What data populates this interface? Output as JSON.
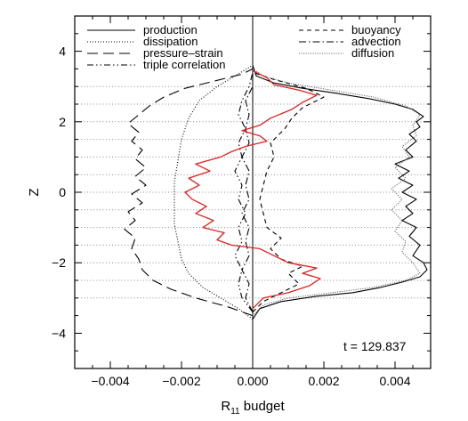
{
  "chart_data": {
    "type": "line",
    "title": "",
    "xlabel": "R",
    "xlabel_sub": "11",
    "xlabel_suffix": " budget",
    "ylabel": "Z",
    "xlim": [
      -0.005,
      0.005
    ],
    "ylim": [
      -5,
      5
    ],
    "xticks": [
      -0.004,
      -0.002,
      0.0,
      0.002,
      0.004
    ],
    "xtick_labels": [
      "−0.004",
      "−0.002",
      "0.000",
      "0.002",
      "0.004"
    ],
    "yticks": [
      -4,
      -2,
      0,
      2,
      4
    ],
    "ytick_labels": [
      "−4",
      "−2",
      "0",
      "2",
      "4"
    ],
    "dotted_gridlines_z": [
      -3,
      -2.5,
      -2,
      -1.5,
      -1,
      -0.5,
      0,
      0.5,
      1,
      1.5,
      2,
      2.5,
      3
    ],
    "grid": "horizontal dotted lines at selected Z levels",
    "annotation": "t = 129.837",
    "legend_placement": "top, two columns",
    "series": [
      {
        "name": "production",
        "style": "solid",
        "color": "#000000",
        "points": [
          [
            0,
            -3.6
          ],
          [
            0.0002,
            -3.3
          ],
          [
            0.0008,
            -3.1
          ],
          [
            0.0018,
            -2.95
          ],
          [
            0.0028,
            -2.85
          ],
          [
            0.0036,
            -2.7
          ],
          [
            0.0042,
            -2.55
          ],
          [
            0.0047,
            -2.4
          ],
          [
            0.0049,
            -2.2
          ],
          [
            0.0048,
            -2.0
          ],
          [
            0.0045,
            -1.8
          ],
          [
            0.0047,
            -1.5
          ],
          [
            0.0044,
            -1.25
          ],
          [
            0.0046,
            -1.0
          ],
          [
            0.0042,
            -0.8
          ],
          [
            0.0045,
            -0.6
          ],
          [
            0.0043,
            -0.4
          ],
          [
            0.0046,
            -0.2
          ],
          [
            0.0042,
            0.0
          ],
          [
            0.0045,
            0.2
          ],
          [
            0.0041,
            0.4
          ],
          [
            0.0044,
            0.6
          ],
          [
            0.004,
            0.8
          ],
          [
            0.0045,
            1.0
          ],
          [
            0.0043,
            1.2
          ],
          [
            0.0046,
            1.45
          ],
          [
            0.0044,
            1.65
          ],
          [
            0.0047,
            1.85
          ],
          [
            0.0046,
            2.0
          ],
          [
            0.0048,
            2.15
          ],
          [
            0.0045,
            2.35
          ],
          [
            0.004,
            2.5
          ],
          [
            0.0033,
            2.65
          ],
          [
            0.0024,
            2.8
          ],
          [
            0.0014,
            2.95
          ],
          [
            0.0006,
            3.1
          ],
          [
            0.0001,
            3.3
          ],
          [
            0,
            3.6
          ]
        ]
      },
      {
        "name": "dissipation",
        "style": "dotted",
        "color": "#000000",
        "points": [
          [
            0,
            -3.6
          ],
          [
            -0.0004,
            -3.3
          ],
          [
            -0.0009,
            -3.0
          ],
          [
            -0.0014,
            -2.7
          ],
          [
            -0.0018,
            -2.3
          ],
          [
            -0.002,
            -1.9
          ],
          [
            -0.0021,
            -1.4
          ],
          [
            -0.0022,
            -0.9
          ],
          [
            -0.0022,
            -0.3
          ],
          [
            -0.0022,
            0.3
          ],
          [
            -0.0021,
            0.9
          ],
          [
            -0.002,
            1.5
          ],
          [
            -0.0018,
            2.1
          ],
          [
            -0.0015,
            2.6
          ],
          [
            -0.001,
            3.0
          ],
          [
            -0.0005,
            3.3
          ],
          [
            0,
            3.6
          ]
        ]
      },
      {
        "name": "pressure–strain",
        "style": "long-dash",
        "color": "#000000",
        "points": [
          [
            0,
            -3.5
          ],
          [
            -0.0007,
            -3.25
          ],
          [
            -0.0016,
            -3.0
          ],
          [
            -0.0023,
            -2.75
          ],
          [
            -0.0028,
            -2.5
          ],
          [
            -0.0031,
            -2.2
          ],
          [
            -0.0032,
            -1.9
          ],
          [
            -0.0034,
            -1.6
          ],
          [
            -0.0033,
            -1.3
          ],
          [
            -0.0036,
            -1.05
          ],
          [
            -0.0033,
            -0.8
          ],
          [
            -0.0035,
            -0.55
          ],
          [
            -0.0031,
            -0.3
          ],
          [
            -0.0034,
            -0.05
          ],
          [
            -0.003,
            0.2
          ],
          [
            -0.0033,
            0.45
          ],
          [
            -0.003,
            0.7
          ],
          [
            -0.0033,
            0.95
          ],
          [
            -0.0031,
            1.2
          ],
          [
            -0.0034,
            1.45
          ],
          [
            -0.0032,
            1.7
          ],
          [
            -0.0035,
            1.95
          ],
          [
            -0.0032,
            2.2
          ],
          [
            -0.0029,
            2.45
          ],
          [
            -0.0025,
            2.7
          ],
          [
            -0.0019,
            2.95
          ],
          [
            -0.0011,
            3.15
          ],
          [
            -0.0003,
            3.35
          ],
          [
            0,
            3.5
          ]
        ]
      },
      {
        "name": "triple correlation",
        "style": "dash-dot-dot",
        "color": "#000000",
        "points": [
          [
            0,
            -3.4
          ],
          [
            -0.0003,
            -3.0
          ],
          [
            -0.0004,
            -2.6
          ],
          [
            -0.0003,
            -2.2
          ],
          [
            -0.0005,
            -1.8
          ],
          [
            -0.0003,
            -1.4
          ],
          [
            -0.0004,
            -1.0
          ],
          [
            -0.0002,
            -0.6
          ],
          [
            -0.0004,
            -0.2
          ],
          [
            -0.0003,
            0.2
          ],
          [
            -0.0005,
            0.6
          ],
          [
            -0.0003,
            1.0
          ],
          [
            -0.0004,
            1.4
          ],
          [
            -0.0002,
            1.8
          ],
          [
            -0.0004,
            2.2
          ],
          [
            -0.0003,
            2.6
          ],
          [
            -0.0001,
            3.0
          ],
          [
            0,
            3.4
          ]
        ]
      },
      {
        "name": "buoyancy",
        "style": "short-dash",
        "color": "#000000",
        "points": [
          [
            0,
            -3.4
          ],
          [
            0.0003,
            -3.1
          ],
          [
            0.0008,
            -2.85
          ],
          [
            0.0013,
            -2.6
          ],
          [
            0.001,
            -2.3
          ],
          [
            0.0014,
            -2.1
          ],
          [
            0.0008,
            -1.9
          ],
          [
            0.0005,
            -1.6
          ],
          [
            0.0008,
            -1.3
          ],
          [
            0.0004,
            -1.0
          ],
          [
            0.0003,
            -0.6
          ],
          [
            0.0002,
            -0.2
          ],
          [
            0.0003,
            0.2
          ],
          [
            0.0004,
            0.6
          ],
          [
            0.0006,
            1.0
          ],
          [
            0.0005,
            1.4
          ],
          [
            0.0009,
            1.8
          ],
          [
            0.0011,
            2.1
          ],
          [
            0.0014,
            2.4
          ],
          [
            0.002,
            2.7
          ],
          [
            0.0015,
            2.95
          ],
          [
            0.0006,
            3.2
          ],
          [
            0,
            3.4
          ]
        ]
      },
      {
        "name": "advection",
        "style": "dash-dot",
        "color": "#000000",
        "points": [
          [
            0,
            -3.4
          ],
          [
            -0.0002,
            -3.0
          ],
          [
            -0.0001,
            -2.6
          ],
          [
            -0.0003,
            -2.2
          ],
          [
            -0.0001,
            -1.8
          ],
          [
            -0.0002,
            -1.4
          ],
          [
            -0.0001,
            -1.0
          ],
          [
            -0.0003,
            -0.6
          ],
          [
            -0.0001,
            -0.2
          ],
          [
            -0.0002,
            0.2
          ],
          [
            -0.0001,
            0.6
          ],
          [
            -0.0003,
            1.0
          ],
          [
            -0.0001,
            1.4
          ],
          [
            -0.0002,
            1.8
          ],
          [
            -0.0001,
            2.2
          ],
          [
            -0.0002,
            2.6
          ],
          [
            0,
            3.0
          ],
          [
            0,
            3.4
          ]
        ]
      },
      {
        "name": "diffusion",
        "style": "thin-dotted",
        "color": "#555555",
        "points": [
          [
            0,
            -3.5
          ],
          [
            0.0003,
            -3.2
          ],
          [
            0.001,
            -3.0
          ],
          [
            0.0022,
            -2.85
          ],
          [
            0.0034,
            -2.7
          ],
          [
            0.0043,
            -2.5
          ],
          [
            0.0047,
            -2.3
          ],
          [
            0.0045,
            -2.0
          ],
          [
            0.0042,
            -1.7
          ],
          [
            0.0043,
            -1.4
          ],
          [
            0.004,
            -1.1
          ],
          [
            0.0042,
            -0.8
          ],
          [
            0.0039,
            -0.5
          ],
          [
            0.0042,
            -0.2
          ],
          [
            0.0039,
            0.1
          ],
          [
            0.0043,
            0.4
          ],
          [
            0.004,
            0.7
          ],
          [
            0.0044,
            1.0
          ],
          [
            0.0042,
            1.3
          ],
          [
            0.0046,
            1.6
          ],
          [
            0.0045,
            1.9
          ],
          [
            0.0047,
            2.2
          ],
          [
            0.0043,
            2.45
          ],
          [
            0.0034,
            2.7
          ],
          [
            0.0022,
            2.9
          ],
          [
            0.001,
            3.1
          ],
          [
            0.0003,
            3.3
          ],
          [
            0,
            3.5
          ]
        ]
      },
      {
        "style": "solid",
        "color": "#e02020",
        "points": [
          [
            0,
            -3.3
          ],
          [
            0.0003,
            -3.0
          ],
          [
            0.001,
            -2.85
          ],
          [
            0.0016,
            -2.65
          ],
          [
            0.0019,
            -2.45
          ],
          [
            0.0014,
            -2.3
          ],
          [
            0.0018,
            -2.15
          ],
          [
            0.001,
            -2.0
          ],
          [
            0.0006,
            -1.8
          ],
          [
            0.0002,
            -1.6
          ],
          [
            -0.0006,
            -1.5
          ],
          [
            -0.001,
            -1.35
          ],
          [
            -0.0008,
            -1.15
          ],
          [
            -0.0014,
            -1.0
          ],
          [
            -0.0011,
            -0.8
          ],
          [
            -0.0016,
            -0.6
          ],
          [
            -0.0013,
            -0.4
          ],
          [
            -0.0017,
            -0.2
          ],
          [
            -0.0019,
            0.0
          ],
          [
            -0.0015,
            0.2
          ],
          [
            -0.0018,
            0.4
          ],
          [
            -0.0012,
            0.6
          ],
          [
            -0.0016,
            0.8
          ],
          [
            -0.0009,
            1.0
          ],
          [
            -0.0006,
            1.15
          ],
          [
            -0.0002,
            1.3
          ],
          [
            0.0004,
            1.45
          ],
          [
            0.0002,
            1.6
          ],
          [
            -0.0003,
            1.75
          ],
          [
            0.0002,
            1.9
          ],
          [
            0.0005,
            2.1
          ],
          [
            0.0011,
            2.35
          ],
          [
            0.0014,
            2.55
          ],
          [
            0.0018,
            2.75
          ],
          [
            0.0013,
            2.9
          ],
          [
            0.0006,
            3.05
          ],
          [
            0.0004,
            3.25
          ],
          [
            0,
            3.45
          ]
        ]
      }
    ]
  }
}
